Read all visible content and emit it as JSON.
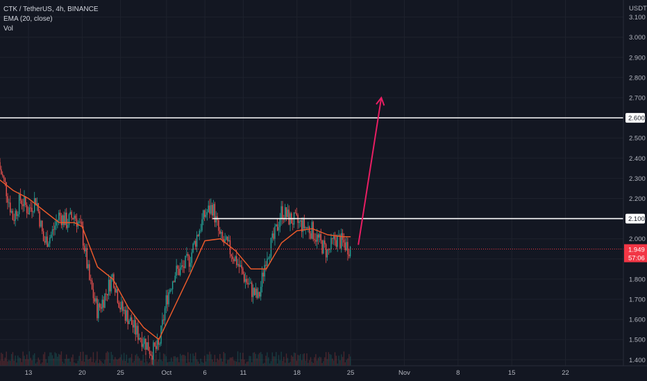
{
  "legend": {
    "symbol_line": "CTK / TetherUS, 4h, BINANCE",
    "indicator": "EMA (20, close)",
    "volume": "Vol"
  },
  "colors": {
    "background": "#131722",
    "grid": "#1e222d",
    "text": "#b2b5be",
    "up_candle": "#26a69a",
    "down_candle": "#ef5350",
    "ema": "#e8592b",
    "arrow": "#e91e63",
    "level_line": "#ffffff",
    "price_tag": "#f23645"
  },
  "chart_data": {
    "type": "candlestick",
    "symbol": "CTK / TetherUS",
    "timeframe": "4h",
    "exchange": "BINANCE",
    "y_unit": "USDT",
    "ylim": [
      1.37,
      3.14
    ],
    "y_ticks": [
      "3.100",
      "3.000",
      "2.900",
      "2.800",
      "2.700",
      "2.600",
      "2.500",
      "2.400",
      "2.300",
      "2.200",
      "2.100",
      "2.000",
      "1.900",
      "1.800",
      "1.700",
      "1.600",
      "1.500",
      "1.400"
    ],
    "x_ticks": [
      "13",
      "20",
      "25",
      "Oct",
      "6",
      "11",
      "18",
      "25",
      "Nov",
      "8",
      "15",
      "22"
    ],
    "price_path": [
      {
        "x": "Sep 9",
        "close": 2.38
      },
      {
        "x": "Sep 10",
        "close": 2.26
      },
      {
        "x": "Sep 11",
        "close": 2.1
      },
      {
        "x": "Sep 12",
        "close": 2.2
      },
      {
        "x": "Sep 13",
        "close": 2.14
      },
      {
        "x": "Sep 14",
        "close": 2.2
      },
      {
        "x": "Sep 15",
        "close": 1.98
      },
      {
        "x": "Sep 16",
        "close": 2.02
      },
      {
        "x": "Sep 17",
        "close": 2.12
      },
      {
        "x": "Sep 18",
        "close": 2.08
      },
      {
        "x": "Sep 19",
        "close": 2.12
      },
      {
        "x": "Sep 20",
        "close": 2.03
      },
      {
        "x": "Sep 21",
        "close": 1.78
      },
      {
        "x": "Sep 22",
        "close": 1.64
      },
      {
        "x": "Sep 23",
        "close": 1.72
      },
      {
        "x": "Sep 24",
        "close": 1.82
      },
      {
        "x": "Sep 25",
        "close": 1.66
      },
      {
        "x": "Sep 26",
        "close": 1.61
      },
      {
        "x": "Sep 27",
        "close": 1.54
      },
      {
        "x": "Sep 28",
        "close": 1.5
      },
      {
        "x": "Sep 29",
        "close": 1.44
      },
      {
        "x": "Sep 30",
        "close": 1.46
      },
      {
        "x": "Oct 1",
        "close": 1.7
      },
      {
        "x": "Oct 2",
        "close": 1.83
      },
      {
        "x": "Oct 3",
        "close": 1.85
      },
      {
        "x": "Oct 4",
        "close": 1.9
      },
      {
        "x": "Oct 5",
        "close": 2.02
      },
      {
        "x": "Oct 6",
        "close": 2.12
      },
      {
        "x": "Oct 7",
        "close": 2.16
      },
      {
        "x": "Oct 8",
        "close": 2.0
      },
      {
        "x": "Oct 9",
        "close": 1.96
      },
      {
        "x": "Oct 10",
        "close": 1.9
      },
      {
        "x": "Oct 11",
        "close": 1.82
      },
      {
        "x": "Oct 12",
        "close": 1.75
      },
      {
        "x": "Oct 13",
        "close": 1.7
      },
      {
        "x": "Oct 14",
        "close": 1.92
      },
      {
        "x": "Oct 15",
        "close": 2.0
      },
      {
        "x": "Oct 16",
        "close": 2.14
      },
      {
        "x": "Oct 17",
        "close": 2.1
      },
      {
        "x": "Oct 18",
        "close": 2.08
      },
      {
        "x": "Oct 19",
        "close": 2.06
      },
      {
        "x": "Oct 20",
        "close": 2.04
      },
      {
        "x": "Oct 21",
        "close": 1.98
      },
      {
        "x": "Oct 22",
        "close": 1.93
      },
      {
        "x": "Oct 23",
        "close": 2.0
      },
      {
        "x": "Oct 24",
        "close": 1.98
      },
      {
        "x": "Oct 25",
        "close": 1.95
      }
    ],
    "ema_path": [
      {
        "x": "Sep 9",
        "value": 2.3
      },
      {
        "x": "Sep 11",
        "value": 2.24
      },
      {
        "x": "Sep 13",
        "value": 2.2
      },
      {
        "x": "Sep 15",
        "value": 2.14
      },
      {
        "x": "Sep 17",
        "value": 2.08
      },
      {
        "x": "Sep 19",
        "value": 2.08
      },
      {
        "x": "Sep 20",
        "value": 2.06
      },
      {
        "x": "Sep 22",
        "value": 1.86
      },
      {
        "x": "Sep 24",
        "value": 1.8
      },
      {
        "x": "Sep 26",
        "value": 1.66
      },
      {
        "x": "Sep 28",
        "value": 1.56
      },
      {
        "x": "Sep 30",
        "value": 1.5
      },
      {
        "x": "Oct 2",
        "value": 1.66
      },
      {
        "x": "Oct 4",
        "value": 1.82
      },
      {
        "x": "Oct 6",
        "value": 1.99
      },
      {
        "x": "Oct 8",
        "value": 2.0
      },
      {
        "x": "Oct 10",
        "value": 1.94
      },
      {
        "x": "Oct 12",
        "value": 1.85
      },
      {
        "x": "Oct 14",
        "value": 1.85
      },
      {
        "x": "Oct 16",
        "value": 1.98
      },
      {
        "x": "Oct 18",
        "value": 2.04
      },
      {
        "x": "Oct 20",
        "value": 2.05
      },
      {
        "x": "Oct 22",
        "value": 2.02
      },
      {
        "x": "Oct 24",
        "value": 2.01
      },
      {
        "x": "Oct 25",
        "value": 2.01
      }
    ],
    "horizontal_levels": [
      {
        "price": 2.6,
        "label": "2.600",
        "start": "chart-left"
      },
      {
        "price": 2.1,
        "label": "2.100",
        "start": "Oct 7"
      }
    ],
    "last_price": {
      "value": "1.949",
      "countdown": "57:06"
    },
    "projection_arrow": {
      "from": {
        "x": "Oct 26",
        "y": 1.97
      },
      "to": {
        "x": "Oct 29",
        "y": 2.7
      }
    }
  }
}
